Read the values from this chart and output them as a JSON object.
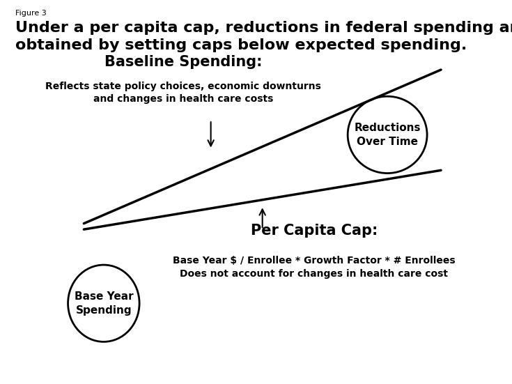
{
  "figure3_label": "Figure 3",
  "title": "Under a per capita cap, reductions in federal spending are\nobtained by setting caps below expected spending.",
  "background_color": "#ffffff",
  "line_color": "#000000",
  "line_width": 2.5,
  "baseline_line": {
    "x": [
      0.05,
      0.95
    ],
    "y": [
      0.4,
      0.92
    ]
  },
  "cap_line": {
    "x": [
      0.05,
      0.95
    ],
    "y": [
      0.38,
      0.58
    ]
  },
  "baseline_title": "Baseline Spending:",
  "baseline_subtitle": "Reflects state policy choices, economic downturns\nand changes in health care costs",
  "cap_title": "Per Capita Cap:",
  "cap_subtitle": "Base Year $ / Enrollee * Growth Factor * # Enrollees\nDoes not account for changes in health care cost",
  "reductions_label": "Reductions\nOver Time",
  "base_year_label": "Base Year\nSpending",
  "logo_color": "#1a3a6b"
}
